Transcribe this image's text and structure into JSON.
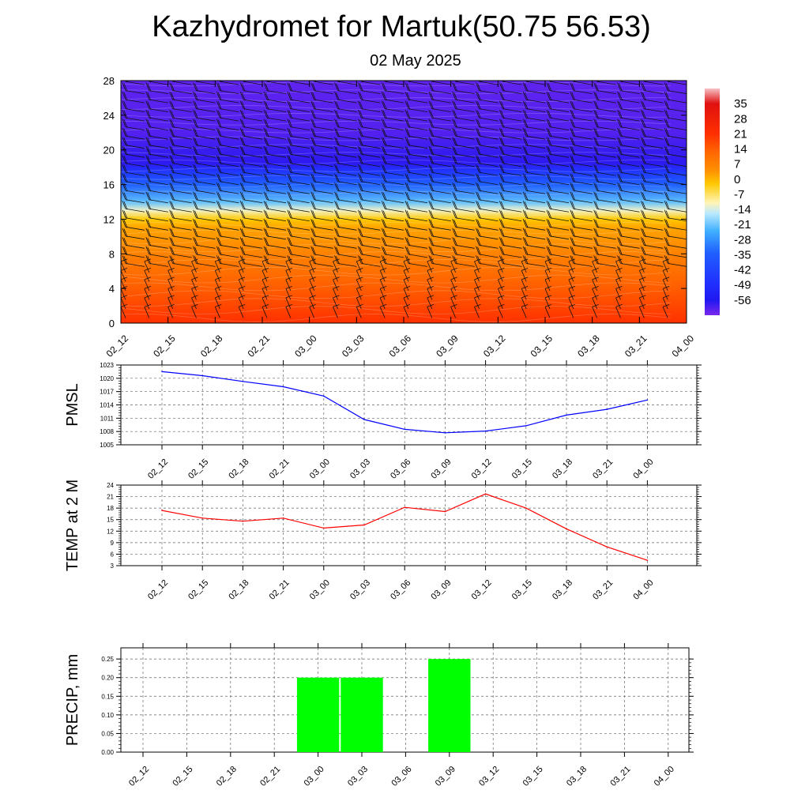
{
  "header": {
    "title": "Kazhydromet for Martuk(50.75 56.53)",
    "subtitle": "02 May 2025"
  },
  "chart_data": [
    {
      "type": "heatmap",
      "name": "Temperature cross-section with wind barbs",
      "x_tick_labels": [
        "02_12",
        "02_15",
        "02_18",
        "02_21",
        "03_00",
        "03_03",
        "03_06",
        "03_09",
        "03_12",
        "03_15",
        "03_18",
        "03_21",
        "04_00"
      ],
      "y_ticks": [
        0,
        4,
        8,
        12,
        16,
        20,
        24,
        28
      ],
      "ylim": [
        0,
        28
      ],
      "colorbar_labels": [
        "35",
        "28",
        "21",
        "14",
        "7",
        "0",
        "-7",
        "-14",
        "-21",
        "-28",
        "-35",
        "-42",
        "-49",
        "-56"
      ],
      "colorbar_range": [
        -63,
        42
      ],
      "colors": {
        "warm_low": "#ff3000",
        "warm_mid": "#ff9000",
        "warm_high": "#ffc800",
        "pale": "#fff5b8",
        "cold_mid": "#40b0ff",
        "cold_deep": "#2060ff",
        "stratosphere": "#2018f0",
        "violet": "#7a28ee"
      },
      "temperature_profile_levels": [
        0,
        4,
        8,
        11,
        12,
        13,
        14,
        16,
        17.5,
        18.5,
        20,
        22,
        28
      ],
      "temperature_profile_values": [
        21,
        14,
        7,
        2,
        -2,
        -12,
        -22,
        -34,
        -46,
        -57,
        -58,
        -60,
        -61
      ]
    },
    {
      "type": "line",
      "name": "PMSL",
      "ylabel": "PMSL",
      "categories": [
        "02_12",
        "02_15",
        "02_18",
        "02_21",
        "03_00",
        "03_03",
        "03_06",
        "03_09",
        "03_12",
        "03_15",
        "03_18",
        "03_21",
        "04_00"
      ],
      "values": [
        1021.5,
        1020.6,
        1019.3,
        1018.1,
        1016.0,
        1010.7,
        1008.5,
        1007.7,
        1008.1,
        1009.3,
        1011.7,
        1013.0,
        1015.1
      ],
      "ylim": [
        1005,
        1023
      ],
      "y_ticks": [
        1005,
        1008,
        1011,
        1014,
        1017,
        1020,
        1023
      ],
      "color": "#0000ff"
    },
    {
      "type": "line",
      "name": "TEMP at 2 M",
      "ylabel": "TEMP at 2 M",
      "categories": [
        "02_12",
        "02_15",
        "02_18",
        "02_21",
        "03_00",
        "03_03",
        "03_06",
        "03_09",
        "03_12",
        "03_15",
        "03_18",
        "03_21",
        "04_00"
      ],
      "values": [
        17.4,
        15.4,
        14.6,
        15.4,
        12.8,
        13.6,
        18.2,
        17.1,
        21.7,
        18.0,
        12.6,
        7.9,
        4.4
      ],
      "ylim": [
        3,
        24
      ],
      "y_ticks": [
        3,
        6,
        9,
        12,
        15,
        18,
        21,
        24
      ],
      "color": "#ff0000"
    },
    {
      "type": "bar",
      "name": "PRECIP, mm",
      "ylabel": "PRECIP, mm",
      "categories": [
        "02_12",
        "02_15",
        "02_18",
        "02_21",
        "03_00",
        "03_03",
        "03_06",
        "03_09",
        "03_12",
        "03_15",
        "03_18",
        "03_21",
        "04_00"
      ],
      "values": [
        0,
        0,
        0,
        0,
        0.2,
        0.2,
        0,
        0.25,
        0,
        0,
        0,
        0,
        0
      ],
      "ylim": [
        0,
        0.28
      ],
      "y_tick_labels": [
        "0.00",
        "0.05",
        "0.10",
        "0.15",
        "0.20",
        "0.25"
      ],
      "y_ticks": [
        0,
        0.05,
        0.1,
        0.15,
        0.2,
        0.25
      ],
      "color": "#00ff00"
    }
  ]
}
